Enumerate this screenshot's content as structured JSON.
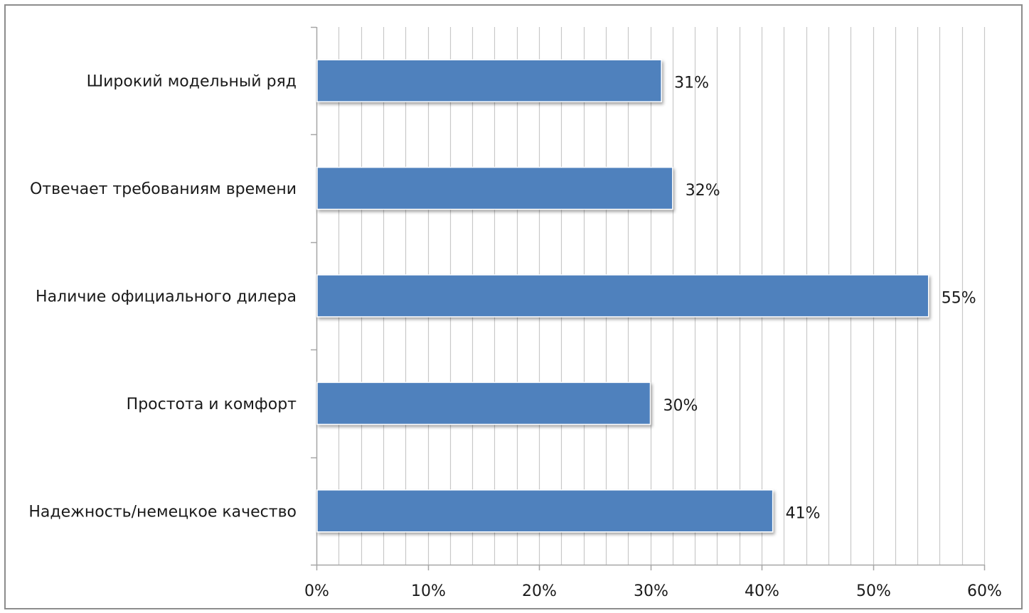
{
  "chart_data": {
    "type": "bar",
    "orientation": "horizontal",
    "categories": [
      "Широкий модельный ряд",
      "Отвечает требованиям времени",
      "Наличие официального дилера",
      "Простота и комфорт",
      "Надежность/немецкое качество"
    ],
    "values": [
      31,
      32,
      55,
      30,
      41
    ],
    "data_labels": [
      "31%",
      "32%",
      "55%",
      "30%",
      "41%"
    ],
    "xlim": [
      0,
      60
    ],
    "x_ticks": [
      0,
      10,
      20,
      30,
      40,
      50,
      60
    ],
    "x_tick_labels": [
      "0%",
      "10%",
      "20%",
      "30%",
      "40%",
      "50%",
      "60%"
    ],
    "minor_grid_step": 2,
    "grid": true,
    "legend": "none",
    "bar_color": "#4f81bd",
    "grid_color": "#c8c8c8",
    "axis_color": "#a6a6a6"
  }
}
